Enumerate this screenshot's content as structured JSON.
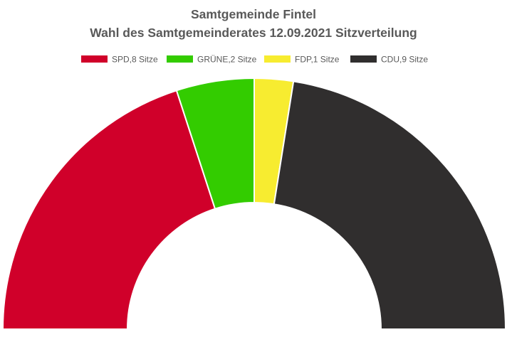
{
  "chart_data": {
    "type": "pie",
    "variant": "half-donut",
    "title": "Samtgemeinde Fintel",
    "subtitle": "Wahl des Samtgemeinderates 12.09.2021 Sitzverteilung",
    "legend_position": "top",
    "series": [
      {
        "label": "SPD,8 Sitze",
        "value": 8,
        "color": "#d0002a"
      },
      {
        "label": "GRÜNE,2 Sitze",
        "value": 2,
        "color": "#33cc00"
      },
      {
        "label": "FDP,1 Sitze",
        "value": 1,
        "color": "#f7ec30"
      },
      {
        "label": "CDU,9 Sitze",
        "value": 9,
        "color": "#302e2e"
      }
    ]
  }
}
